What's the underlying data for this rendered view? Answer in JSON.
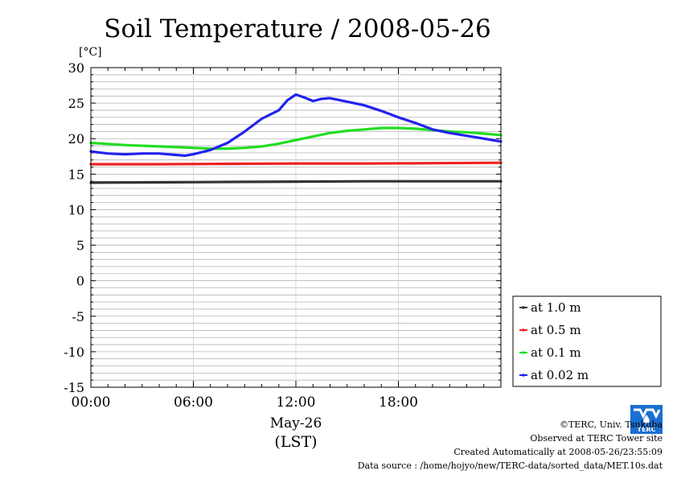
{
  "chart_data": {
    "type": "line",
    "title": "Soil Temperature / 2008-05-26",
    "ylabel": "[°C]",
    "xlabel_date": "May-26",
    "xlabel_unit": "(LST)",
    "ylim": [
      -15,
      30
    ],
    "xlim": [
      0,
      24
    ],
    "y_ticks": [
      30,
      25,
      20,
      15,
      10,
      5,
      0,
      -5,
      -10,
      -15
    ],
    "x_ticks": [
      {
        "value": 0,
        "label": "00:00"
      },
      {
        "value": 6,
        "label": "06:00"
      },
      {
        "value": 12,
        "label": "12:00"
      },
      {
        "value": 18,
        "label": "18:00"
      }
    ],
    "grid": true,
    "legend_position": "bottom-right",
    "series": [
      {
        "name": "at 1.0 m",
        "color": "#333333",
        "x": [
          0,
          4,
          8,
          12,
          16,
          20,
          24
        ],
        "y": [
          13.8,
          13.85,
          13.9,
          13.95,
          14.0,
          14.0,
          14.0
        ]
      },
      {
        "name": "at 0.5 m",
        "color": "#ee2222",
        "x": [
          0,
          4,
          8,
          12,
          16,
          20,
          24
        ],
        "y": [
          16.4,
          16.4,
          16.45,
          16.5,
          16.5,
          16.55,
          16.6
        ]
      },
      {
        "name": "at 0.1 m",
        "color": "#22dd22",
        "x": [
          0,
          2,
          4,
          6,
          7,
          8,
          9,
          10,
          11,
          12,
          13,
          14,
          15,
          16,
          17,
          18,
          19,
          20,
          21,
          22,
          23,
          24
        ],
        "y": [
          19.4,
          19.1,
          18.9,
          18.7,
          18.6,
          18.6,
          18.7,
          18.9,
          19.3,
          19.8,
          20.3,
          20.8,
          21.1,
          21.3,
          21.5,
          21.5,
          21.4,
          21.2,
          21.0,
          20.9,
          20.7,
          20.5
        ]
      },
      {
        "name": "at 0.02 m",
        "color": "#2222ee",
        "x": [
          0,
          1,
          2,
          3,
          4,
          5,
          5.5,
          6,
          7,
          8,
          9,
          10,
          11,
          11.5,
          12,
          12.5,
          13,
          13.5,
          14,
          15,
          16,
          17,
          18,
          19,
          20,
          21,
          22,
          23,
          24
        ],
        "y": [
          18.2,
          17.9,
          17.8,
          17.9,
          17.9,
          17.7,
          17.6,
          17.8,
          18.4,
          19.4,
          21.0,
          22.8,
          24.0,
          25.4,
          26.2,
          25.8,
          25.3,
          25.6,
          25.7,
          25.2,
          24.7,
          23.9,
          23.0,
          22.2,
          21.3,
          20.8,
          20.4,
          20.0,
          19.6
        ]
      }
    ]
  },
  "footer": {
    "copyright": "©TERC, Univ. Tsukuba",
    "observed": "Observed at TERC Tower site",
    "created": "Created Automatically at 2008-05-26/23:55:09",
    "source": "Data source : /home/hojyo/new/TERC-data/sorted_data/MET.10s.dat"
  },
  "logo": {
    "text": "TERC",
    "icon": "terc-logo-icon",
    "color": "#1a6fd0"
  }
}
